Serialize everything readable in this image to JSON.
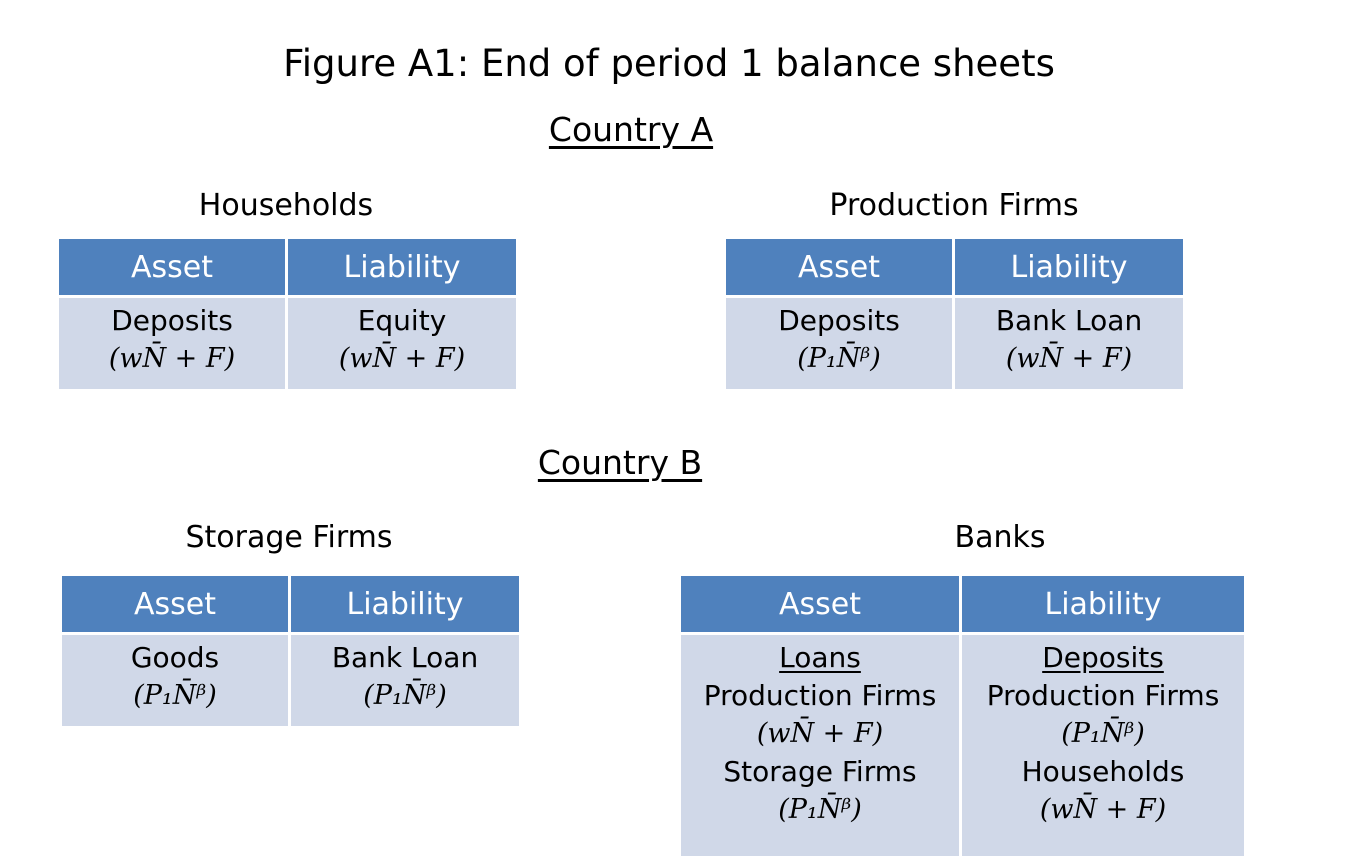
{
  "figure_title": "Figure A1: End of period 1 balance sheets",
  "countries": [
    {
      "name": "Country A",
      "entities": [
        {
          "name": "Households",
          "columns": [
            "Asset",
            "Liability"
          ],
          "cells": [
            [
              "Deposits",
              "(wN̄ + F)"
            ],
            [
              "Equity",
              "(wN̄ + F)"
            ]
          ]
        },
        {
          "name": "Production Firms",
          "columns": [
            "Asset",
            "Liability"
          ],
          "cells": [
            [
              "Deposits",
              "(P₁N̄ᵝ)"
            ],
            [
              "Bank Loan",
              "(wN̄ + F)"
            ]
          ]
        }
      ]
    },
    {
      "name": "Country B",
      "entities": [
        {
          "name": "Storage Firms",
          "columns": [
            "Asset",
            "Liability"
          ],
          "cells": [
            [
              "Goods",
              "(P₁N̄ᵝ)"
            ],
            [
              "Bank Loan",
              "(P₁N̄ᵝ)"
            ]
          ]
        },
        {
          "name": "Banks",
          "columns": [
            "Asset",
            "Liability"
          ],
          "cells": [
            [
              "Loans",
              "Production Firms",
              "(wN̄ + F)",
              "Storage Firms",
              "(P₁N̄ᵝ)"
            ],
            [
              "Deposits",
              "Production Firms",
              "(P₁N̄ᵝ)",
              "Households",
              "(wN̄ + F)"
            ]
          ]
        }
      ]
    }
  ]
}
